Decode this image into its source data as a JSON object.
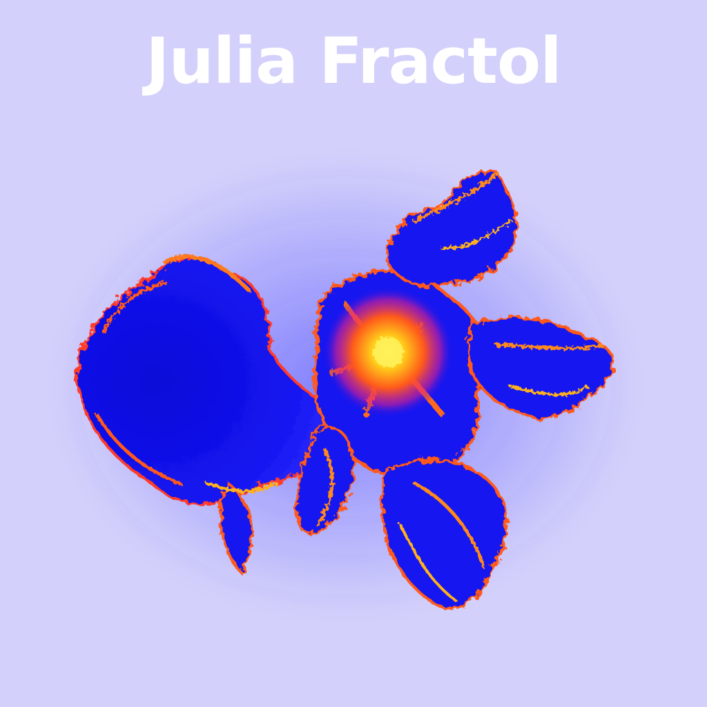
{
  "title": "Julia Fractol",
  "colors": {
    "background": "#d3d0fb",
    "fractal_body": "#1010ee",
    "fractal_core": "#ffd21a",
    "fractal_edge": "#ff5a1a",
    "title_text": "#ffffff"
  },
  "image": {
    "subject": "julia-set-fractal"
  }
}
